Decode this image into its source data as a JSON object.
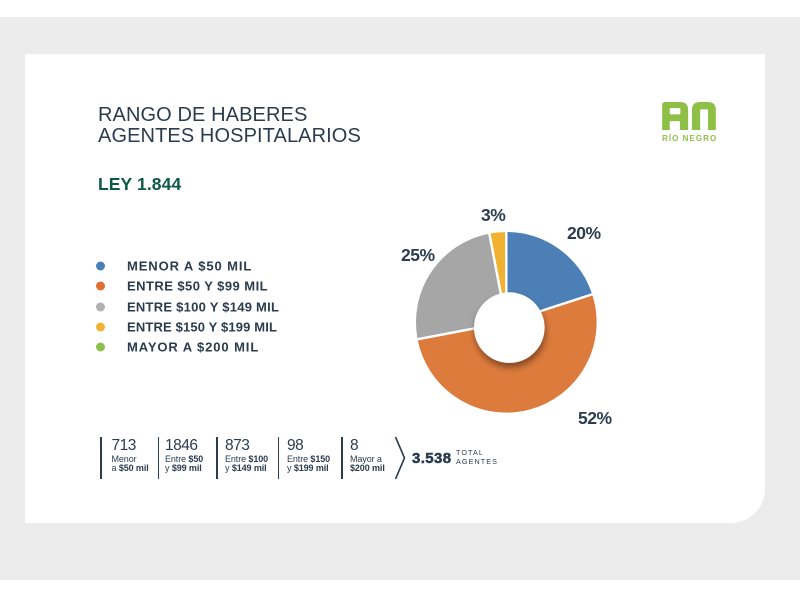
{
  "page": {
    "background_color": "#ececec",
    "card_color": "#ffffff",
    "text_color": "#2b3c4e",
    "accent_green": "#0c5a46",
    "logo_green": "#8ebf47"
  },
  "header": {
    "title_line1": "RANGO DE HABERES",
    "title_line2": "AGENTES HOSPITALARIOS",
    "subtitle": "LEY 1.844"
  },
  "logo": {
    "name": "RN Río Negro",
    "wordmark": "RÍO NEGRO",
    "color": "#8ebf47"
  },
  "legend": {
    "items": [
      {
        "label": "MENOR A $50 MIL",
        "color": "#4c7fb5"
      },
      {
        "label": "ENTRE $50 Y $99 MIL",
        "color": "#dd7030"
      },
      {
        "label": "ENTRE $100 Y $149 MIL",
        "color": "#b0b0b0"
      },
      {
        "label": "ENTRE $150 Y $199 MIL",
        "color": "#f2b231"
      },
      {
        "label": "MAYOR A $200 MIL",
        "color": "#8fc04d"
      }
    ]
  },
  "chart_data": {
    "type": "pie",
    "subtype": "donut",
    "title": "RANGO DE HABERES AGENTES HOSPITALARIOS",
    "legend_position": "left",
    "segments": [
      {
        "label": "MENOR A $50 MIL",
        "pct": 20,
        "count": 713,
        "color": "#4c7fb5",
        "pct_label": "20%"
      },
      {
        "label": "ENTRE $50 Y $99 MIL",
        "pct": 52,
        "count": 1846,
        "color": "#dd7b3c",
        "pct_label": "52%"
      },
      {
        "label": "ENTRE $100 Y $149 MIL",
        "pct": 25,
        "count": 873,
        "color": "#a6a6a6",
        "pct_label": "25%"
      },
      {
        "label": "ENTRE $150 Y $199 MIL",
        "pct": 3,
        "count": 98,
        "color": "#f2b231",
        "pct_label": "3%"
      },
      {
        "label": "MAYOR A $200 MIL",
        "pct": 0,
        "count": 8,
        "color": "#8fc04d",
        "pct_label": ""
      }
    ],
    "total": 3538
  },
  "stats": {
    "columns": [
      {
        "value": "713",
        "line1_pre": "Menor",
        "line1_bold": "",
        "line2_pre": "a ",
        "line2_bold": "$50 mil"
      },
      {
        "value": "1846",
        "line1_pre": "Entre ",
        "line1_bold": "$50",
        "line2_pre": "y ",
        "line2_bold": "$99 mil"
      },
      {
        "value": "873",
        "line1_pre": "Entre ",
        "line1_bold": "$100",
        "line2_pre": "y ",
        "line2_bold": "$149 mil"
      },
      {
        "value": "98",
        "line1_pre": "Entre ",
        "line1_bold": "$150",
        "line2_pre": "y ",
        "line2_bold": "$199 mil"
      },
      {
        "value": "8",
        "line1_pre": "Mayor a",
        "line1_bold": "",
        "line2_pre": "",
        "line2_bold": "$200 mil"
      }
    ],
    "total_value": "3.538",
    "total_label_line1": "TOTAL",
    "total_label_line2": "AGENTES"
  }
}
